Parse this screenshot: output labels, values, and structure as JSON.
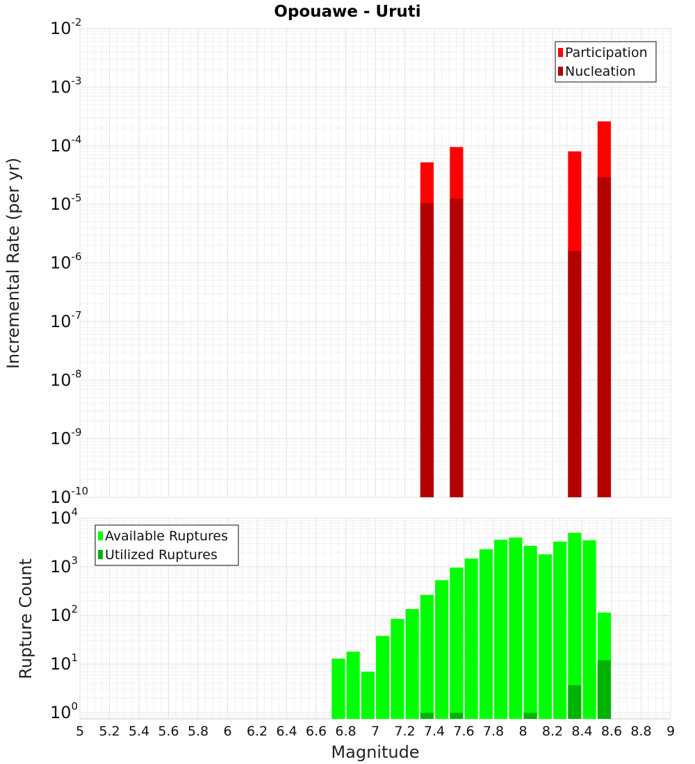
{
  "chart_data": [
    {
      "type": "bar",
      "title": "Opouawe - Uruti",
      "xlabel": "",
      "ylabel": "Incremental Rate (per yr)",
      "y_scale": "log",
      "xlim": [
        5,
        9
      ],
      "ylim": [
        1e-10,
        0.01
      ],
      "x_ticks": [
        5,
        5.2,
        5.4,
        5.6,
        5.8,
        6,
        6.2,
        6.4,
        6.6,
        6.8,
        7,
        7.2,
        7.4,
        7.6,
        7.8,
        8,
        8.2,
        8.4,
        8.6,
        8.8,
        9
      ],
      "x_tick_labels": [
        "5",
        "5.2",
        "5.4",
        "5.6",
        "5.8",
        "6",
        "6.2",
        "6.4",
        "6.6",
        "6.8",
        "7",
        "7.2",
        "7.4",
        "7.6",
        "7.8",
        "8",
        "8.2",
        "8.4",
        "8.6",
        "8.8",
        "9"
      ],
      "y_tick_exponents": [
        "-10",
        "-9",
        "-8",
        "-7",
        "-6",
        "-5",
        "-4",
        "-3",
        "-2"
      ],
      "y_tick_base": "10",
      "legend_position": "top-right",
      "grid": true,
      "series": [
        {
          "name": "Participation",
          "color": "#ff0000",
          "x": [
            7.35,
            7.55,
            8.35,
            8.55
          ],
          "values": [
            5.2e-05,
            9.5e-05,
            8e-05,
            0.00026
          ]
        },
        {
          "name": "Nucleation",
          "color": "#b30000",
          "x": [
            7.35,
            7.55,
            8.35,
            8.55
          ],
          "values": [
            1.05e-05,
            1.25e-05,
            1.6e-06,
            2.9e-05
          ]
        }
      ]
    },
    {
      "type": "bar",
      "title": "",
      "xlabel": "Magnitude",
      "ylabel": "Rupture Count",
      "y_scale": "log",
      "xlim": [
        5,
        9
      ],
      "ylim": [
        0.75,
        10000
      ],
      "x_ticks": [
        5,
        5.2,
        5.4,
        5.6,
        5.8,
        6,
        6.2,
        6.4,
        6.6,
        6.8,
        7,
        7.2,
        7.4,
        7.6,
        7.8,
        8,
        8.2,
        8.4,
        8.6,
        8.8,
        9
      ],
      "x_tick_labels": [
        "5",
        "5.2",
        "5.4",
        "5.6",
        "5.8",
        "6",
        "6.2",
        "6.4",
        "6.6",
        "6.8",
        "7",
        "7.2",
        "7.4",
        "7.6",
        "7.8",
        "8",
        "8.2",
        "8.4",
        "8.6",
        "8.8",
        "9"
      ],
      "y_tick_exponents": [
        "0",
        "1",
        "2",
        "3",
        "4"
      ],
      "y_tick_base": "10",
      "legend_position": "top-left",
      "grid": true,
      "series": [
        {
          "name": "Available Ruptures",
          "color": "#00ff00",
          "x": [
            6.75,
            6.85,
            6.95,
            7.05,
            7.15,
            7.25,
            7.35,
            7.45,
            7.55,
            7.65,
            7.75,
            7.85,
            7.95,
            8.05,
            8.15,
            8.25,
            8.35,
            8.45,
            8.55
          ],
          "values": [
            13,
            18,
            7,
            38,
            85,
            135,
            265,
            530,
            960,
            1480,
            2300,
            3600,
            4000,
            2700,
            1800,
            3300,
            5000,
            3500,
            115
          ]
        },
        {
          "name": "Utilized Ruptures",
          "color": "#00b300",
          "x": [
            7.35,
            7.55,
            8.05,
            8.35,
            8.55
          ],
          "values": [
            1,
            1,
            1,
            3.7,
            12
          ]
        }
      ]
    }
  ]
}
